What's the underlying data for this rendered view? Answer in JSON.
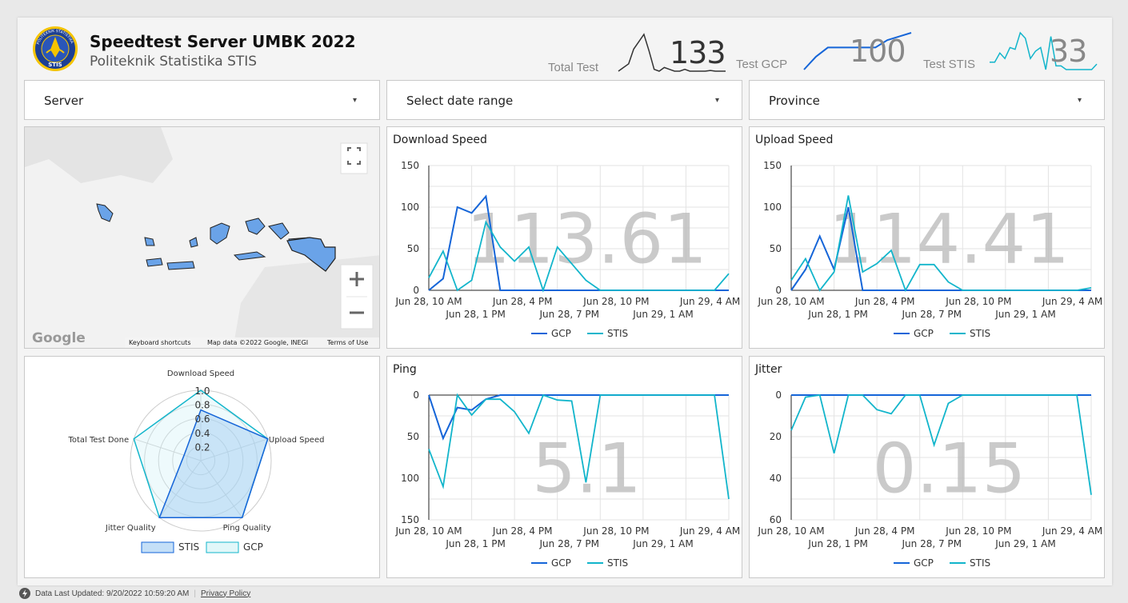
{
  "header": {
    "title": "Speedtest Server UMBK 2022",
    "subtitle": "Politeknik Statistika STIS",
    "logo_ring_text": "POLITEKNIK STATISTIKA",
    "logo_text": "STIS"
  },
  "kpis": [
    {
      "label": "Total Test",
      "value": "133",
      "color": "#333333"
    },
    {
      "label": "Test GCP",
      "value": "100",
      "color": "#1565d8"
    },
    {
      "label": "Test STIS",
      "value": "33",
      "color": "#12b5cb"
    }
  ],
  "filters": {
    "server": "Server",
    "date": "Select date range",
    "province": "Province"
  },
  "map": {
    "attribution_shortcuts": "Keyboard shortcuts",
    "attribution_data": "Map data ©2022 Google, INEGI",
    "attribution_terms": "Terms of Use",
    "logo": "Google"
  },
  "colors": {
    "gcp": "#1565d8",
    "stis": "#12b5cb"
  },
  "chart_data": [
    {
      "type": "line",
      "title": "Download Speed",
      "scorecard": "113.61",
      "ylim": [
        0,
        150
      ],
      "yticks": [
        0,
        50,
        100,
        150
      ],
      "x_ticks_top": [
        "Jun 28, 10 AM",
        "Jun 28, 4 PM",
        "Jun 28, 10 PM",
        "Jun 29, 4 AM"
      ],
      "x_ticks_bottom": [
        "Jun 28, 1 PM",
        "Jun 28, 7 PM",
        "Jun 29, 1 AM"
      ],
      "x_range": [
        0,
        21
      ],
      "series": [
        {
          "name": "GCP",
          "x": [
            0,
            1,
            2,
            3,
            4,
            5,
            6,
            7,
            8,
            9,
            10,
            11,
            12,
            13,
            14,
            15,
            16,
            17,
            18,
            19,
            20,
            21
          ],
          "values": [
            0,
            14,
            100,
            93,
            113,
            0,
            0,
            0,
            0,
            0,
            0,
            0,
            0,
            0,
            0,
            0,
            0,
            0,
            0,
            0,
            0,
            0
          ]
        },
        {
          "name": "STIS",
          "x": [
            0,
            1,
            2,
            3,
            4,
            5,
            6,
            7,
            8,
            9,
            10,
            11,
            12,
            13,
            14,
            15,
            16,
            17,
            18,
            19,
            20,
            21
          ],
          "values": [
            15,
            47,
            0,
            12,
            82,
            52,
            35,
            52,
            0,
            52,
            32,
            12,
            0,
            0,
            0,
            0,
            0,
            0,
            0,
            0,
            0,
            20
          ]
        }
      ]
    },
    {
      "type": "line",
      "title": "Upload Speed",
      "scorecard": "114.41",
      "ylim": [
        0,
        150
      ],
      "yticks": [
        0,
        50,
        100,
        150
      ],
      "x_ticks_top": [
        "Jun 28, 10 AM",
        "Jun 28, 4 PM",
        "Jun 28, 10 PM",
        "Jun 29, 4 AM"
      ],
      "x_ticks_bottom": [
        "Jun 28, 1 PM",
        "Jun 28, 7 PM",
        "Jun 29, 1 AM"
      ],
      "x_range": [
        0,
        21
      ],
      "series": [
        {
          "name": "GCP",
          "x": [
            0,
            1,
            2,
            3,
            4,
            5,
            6,
            7,
            8,
            9,
            10,
            11,
            12,
            13,
            14,
            15,
            16,
            17,
            18,
            19,
            20,
            21
          ],
          "values": [
            0,
            25,
            65,
            25,
            100,
            0,
            0,
            0,
            0,
            0,
            0,
            0,
            0,
            0,
            0,
            0,
            0,
            0,
            0,
            0,
            0,
            0
          ]
        },
        {
          "name": "STIS",
          "x": [
            0,
            1,
            2,
            3,
            4,
            5,
            6,
            7,
            8,
            9,
            10,
            11,
            12,
            13,
            14,
            15,
            16,
            17,
            18,
            19,
            20,
            21
          ],
          "values": [
            12,
            38,
            0,
            22,
            114,
            22,
            32,
            48,
            0,
            31,
            31,
            10,
            0,
            0,
            0,
            0,
            0,
            0,
            0,
            0,
            0,
            3
          ]
        }
      ]
    },
    {
      "type": "line",
      "title": "Ping",
      "scorecard": "5.1",
      "ylim": [
        0,
        150
      ],
      "y_reversed": true,
      "yticks": [
        0,
        50,
        100,
        150
      ],
      "x_ticks_top": [
        "Jun 28, 10 AM",
        "Jun 28, 4 PM",
        "Jun 28, 10 PM",
        "Jun 29, 4 AM"
      ],
      "x_ticks_bottom": [
        "Jun 28, 1 PM",
        "Jun 28, 7 PM",
        "Jun 29, 1 AM"
      ],
      "x_range": [
        0,
        21
      ],
      "series": [
        {
          "name": "GCP",
          "x": [
            0,
            1,
            2,
            3,
            4,
            5,
            6,
            7,
            8,
            9,
            10,
            11,
            12,
            13,
            14,
            15,
            16,
            17,
            18,
            19,
            20,
            21
          ],
          "values": [
            0,
            52,
            15,
            18,
            5,
            0,
            0,
            0,
            0,
            0,
            0,
            0,
            0,
            0,
            0,
            0,
            0,
            0,
            0,
            0,
            0,
            0
          ]
        },
        {
          "name": "STIS",
          "x": [
            0,
            1,
            2,
            3,
            4,
            5,
            6,
            7,
            8,
            9,
            10,
            11,
            12,
            13,
            14,
            15,
            16,
            17,
            18,
            19,
            20,
            21
          ],
          "values": [
            65,
            110,
            0,
            24,
            5,
            5,
            20,
            46,
            0,
            6,
            7,
            105,
            0,
            0,
            0,
            0,
            0,
            0,
            0,
            0,
            0,
            125
          ]
        }
      ]
    },
    {
      "type": "line",
      "title": "Jitter",
      "scorecard": "0.15",
      "ylim": [
        0,
        60
      ],
      "y_reversed": true,
      "yticks": [
        0,
        20,
        40,
        60
      ],
      "x_ticks_top": [
        "Jun 28, 10 AM",
        "Jun 28, 4 PM",
        "Jun 28, 10 PM",
        "Jun 29, 4 AM"
      ],
      "x_ticks_bottom": [
        "Jun 28, 1 PM",
        "Jun 28, 7 PM",
        "Jun 29, 1 AM"
      ],
      "x_range": [
        0,
        21
      ],
      "series": [
        {
          "name": "GCP",
          "x": [
            0,
            1,
            2,
            3,
            4,
            5,
            6,
            7,
            8,
            9,
            10,
            11,
            12,
            13,
            14,
            15,
            16,
            17,
            18,
            19,
            20,
            21
          ],
          "values": [
            0,
            0,
            0,
            0,
            0,
            0,
            0,
            0,
            0,
            0,
            0,
            0,
            0,
            0,
            0,
            0,
            0,
            0,
            0,
            0,
            0,
            0
          ]
        },
        {
          "name": "STIS",
          "x": [
            0,
            1,
            2,
            3,
            4,
            5,
            6,
            7,
            8,
            9,
            10,
            11,
            12,
            13,
            14,
            15,
            16,
            17,
            18,
            19,
            20,
            21
          ],
          "values": [
            17,
            1,
            0,
            28,
            0,
            0,
            7,
            9,
            0,
            0,
            24,
            4,
            0,
            0,
            0,
            0,
            0,
            0,
            0,
            0,
            0,
            48
          ]
        }
      ]
    },
    {
      "type": "radar",
      "axes": [
        "Download Speed",
        "Upload Speed",
        "Ping Quality",
        "Jitter Quality",
        "Total Test Done"
      ],
      "ticks": [
        0.2,
        0.4,
        0.6,
        0.8,
        1.0
      ],
      "tick_labels": [
        "0.2",
        "0.4",
        "0.6",
        "0.8",
        "1.0"
      ],
      "rmax": 1.0,
      "series": [
        {
          "name": "STIS",
          "values": [
            0.72,
            1.0,
            1.0,
            1.0,
            0.25
          ]
        },
        {
          "name": "GCP",
          "values": [
            1.0,
            1.0,
            1.0,
            1.0,
            1.0
          ]
        }
      ]
    }
  ],
  "sparklines": {
    "total": [
      0.0,
      0.1,
      0.2,
      0.6,
      0.8,
      1.0,
      0.55,
      0.05,
      0.0,
      0.1,
      0.05,
      0.0,
      0.0,
      0.05,
      0.0,
      0.0,
      0.0,
      0.0,
      0.02,
      0.0,
      0.0,
      0.0
    ],
    "gcp": [
      0.0,
      0.35,
      0.6,
      0.6,
      0.6,
      0.6,
      0.6,
      0.8,
      0.9,
      1.0
    ],
    "stis": [
      0.2,
      0.2,
      0.45,
      0.3,
      0.6,
      0.55,
      1.0,
      0.85,
      0.3,
      0.5,
      0.6,
      0.0,
      0.9,
      0.1,
      0.1,
      0.0,
      0.0,
      0.0,
      0.0,
      0.0,
      0.0,
      0.15
    ]
  },
  "footer": {
    "updated": "Data Last Updated: 9/20/2022 10:59:20 AM",
    "privacy": "Privacy Policy"
  }
}
